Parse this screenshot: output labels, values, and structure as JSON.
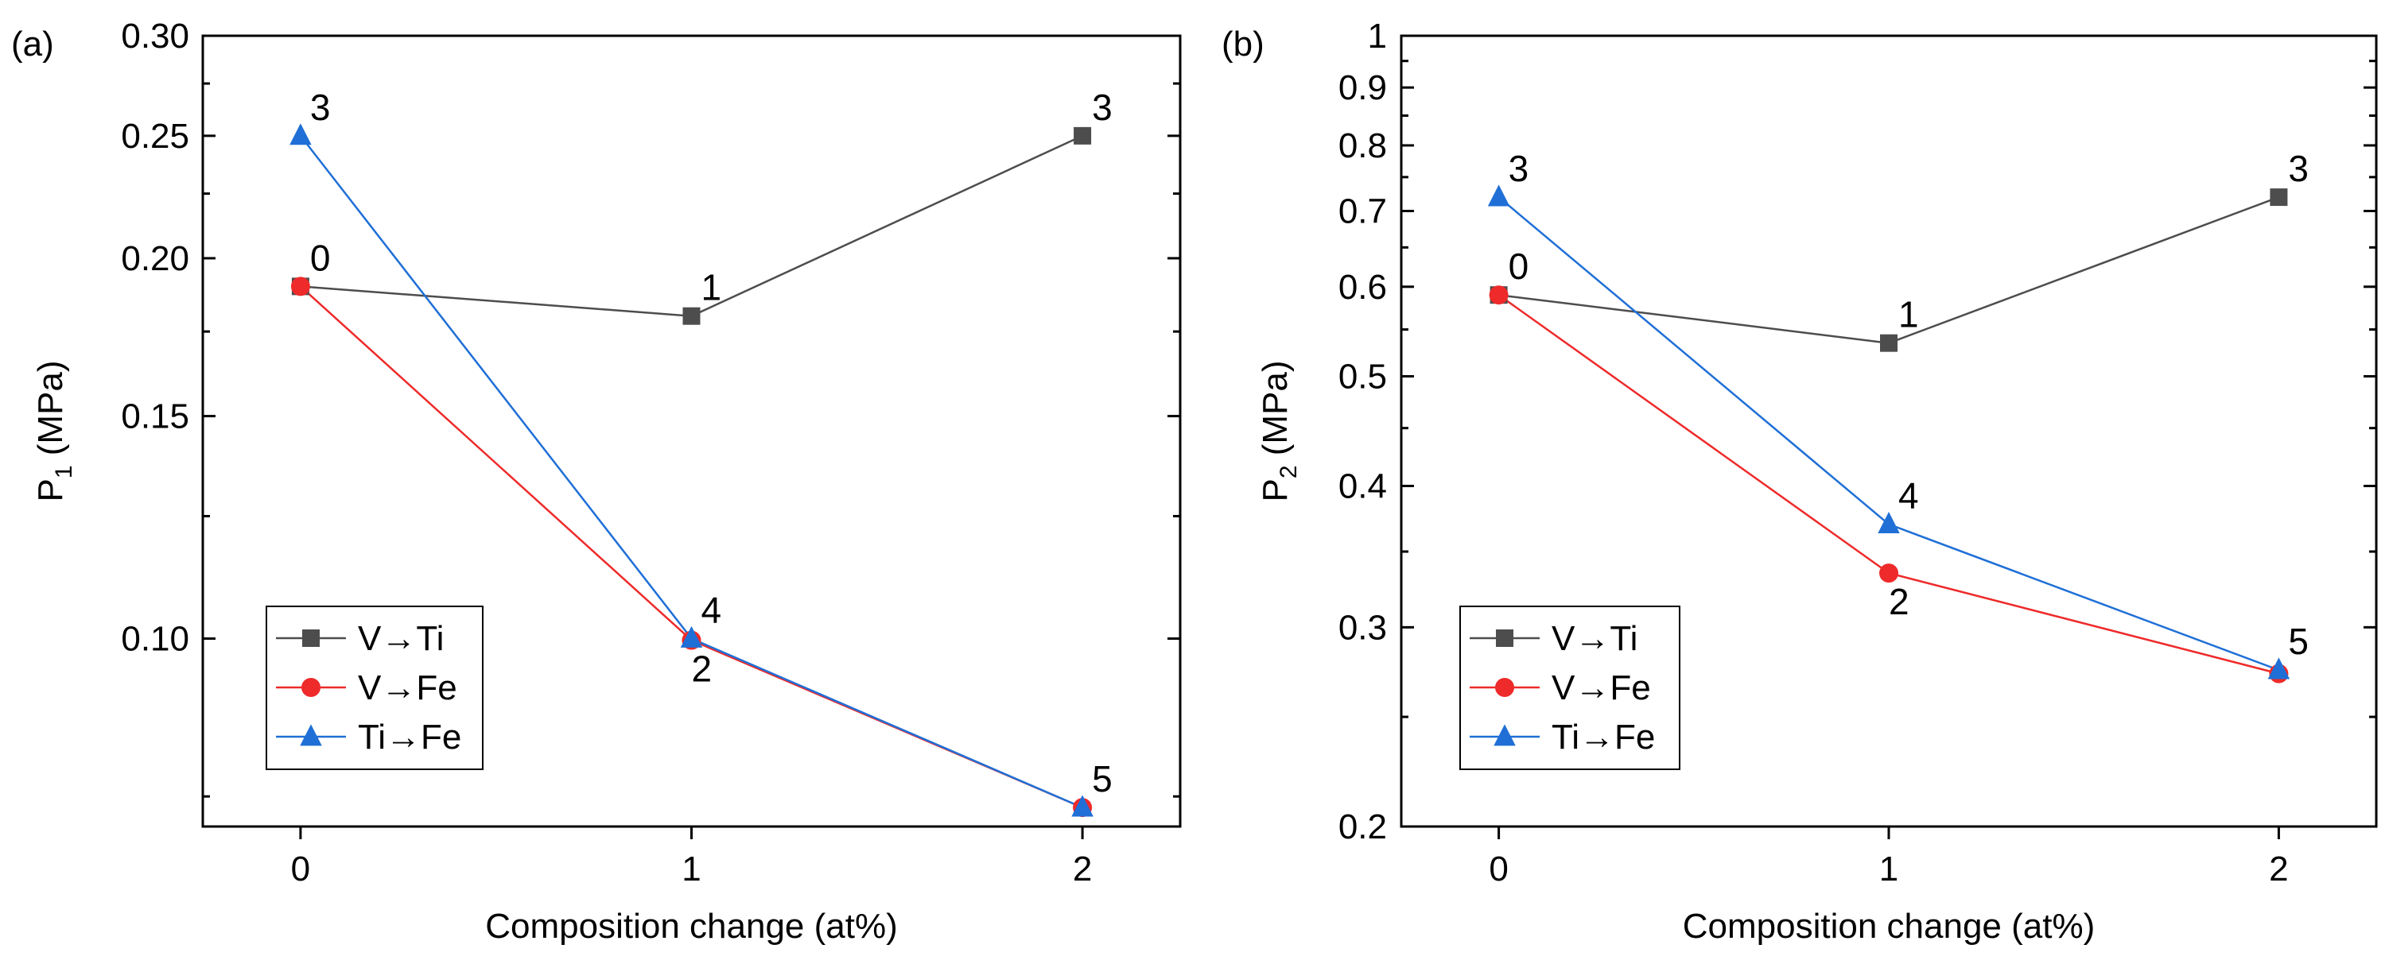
{
  "chart_data": [
    {
      "panel_label": "(a)",
      "type": "line",
      "yscale": "log",
      "xlabel": "Composition change (at%)",
      "ylabel": "P",
      "ylabel_sub": "1",
      "ylabel_unit": "(MPa)",
      "xlim": [
        -0.25,
        2.25
      ],
      "ylim": [
        0.071,
        0.3
      ],
      "x_ticks": [
        0,
        1,
        2
      ],
      "x_tick_labels": [
        "0",
        "1",
        "2"
      ],
      "y_ticks": [
        0.1,
        0.15,
        0.2,
        0.25,
        0.3
      ],
      "y_tick_labels": [
        "0.10",
        "0.15",
        "0.20",
        "0.25",
        "0.30"
      ],
      "legend_position": "bottom-left",
      "series": [
        {
          "name": "V→Ti",
          "color": "#4d4d4d",
          "marker": "square",
          "x": [
            0,
            1,
            2
          ],
          "values": [
            0.19,
            0.18,
            0.25
          ],
          "labels": [
            "0",
            "1",
            "3"
          ]
        },
        {
          "name": "V→Fe",
          "color": "#ee2a2a",
          "marker": "circle",
          "x": [
            0,
            1,
            2
          ],
          "values": [
            0.19,
            0.0997,
            0.0735
          ],
          "labels": [
            "",
            "2",
            ""
          ]
        },
        {
          "name": "Ti→Fe",
          "color": "#1f6fd6",
          "marker": "triangle",
          "x": [
            0,
            1,
            2
          ],
          "values": [
            0.25,
            0.1,
            0.0735
          ],
          "labels": [
            "3",
            "4",
            "5"
          ]
        }
      ]
    },
    {
      "panel_label": "(b)",
      "type": "line",
      "yscale": "log",
      "xlabel": "Composition change (at%)",
      "ylabel": "P",
      "ylabel_sub": "2",
      "ylabel_unit": "(MPa)",
      "xlim": [
        -0.25,
        2.25
      ],
      "ylim": [
        0.2,
        1.0
      ],
      "x_ticks": [
        0,
        1,
        2
      ],
      "x_tick_labels": [
        "0",
        "1",
        "2"
      ],
      "y_ticks": [
        0.2,
        0.3,
        0.4,
        0.5,
        0.6,
        0.7,
        0.8,
        0.9,
        1.0
      ],
      "y_tick_labels": [
        "0.2",
        "0.3",
        "0.4",
        "0.5",
        "0.6",
        "0.7",
        "0.8",
        "0.9",
        "1"
      ],
      "legend_position": "bottom-left",
      "series": [
        {
          "name": "V→Ti",
          "color": "#4d4d4d",
          "marker": "square",
          "x": [
            0,
            1,
            2
          ],
          "values": [
            0.59,
            0.535,
            0.72
          ],
          "labels": [
            "0",
            "1",
            "3"
          ]
        },
        {
          "name": "V→Fe",
          "color": "#ee2a2a",
          "marker": "circle",
          "x": [
            0,
            1,
            2
          ],
          "values": [
            0.59,
            0.335,
            0.273
          ],
          "labels": [
            "",
            "2",
            ""
          ]
        },
        {
          "name": "Ti→Fe",
          "color": "#1f6fd6",
          "marker": "triangle",
          "x": [
            0,
            1,
            2
          ],
          "values": [
            0.72,
            0.37,
            0.275
          ],
          "labels": [
            "3",
            "4",
            "5"
          ]
        }
      ]
    }
  ]
}
